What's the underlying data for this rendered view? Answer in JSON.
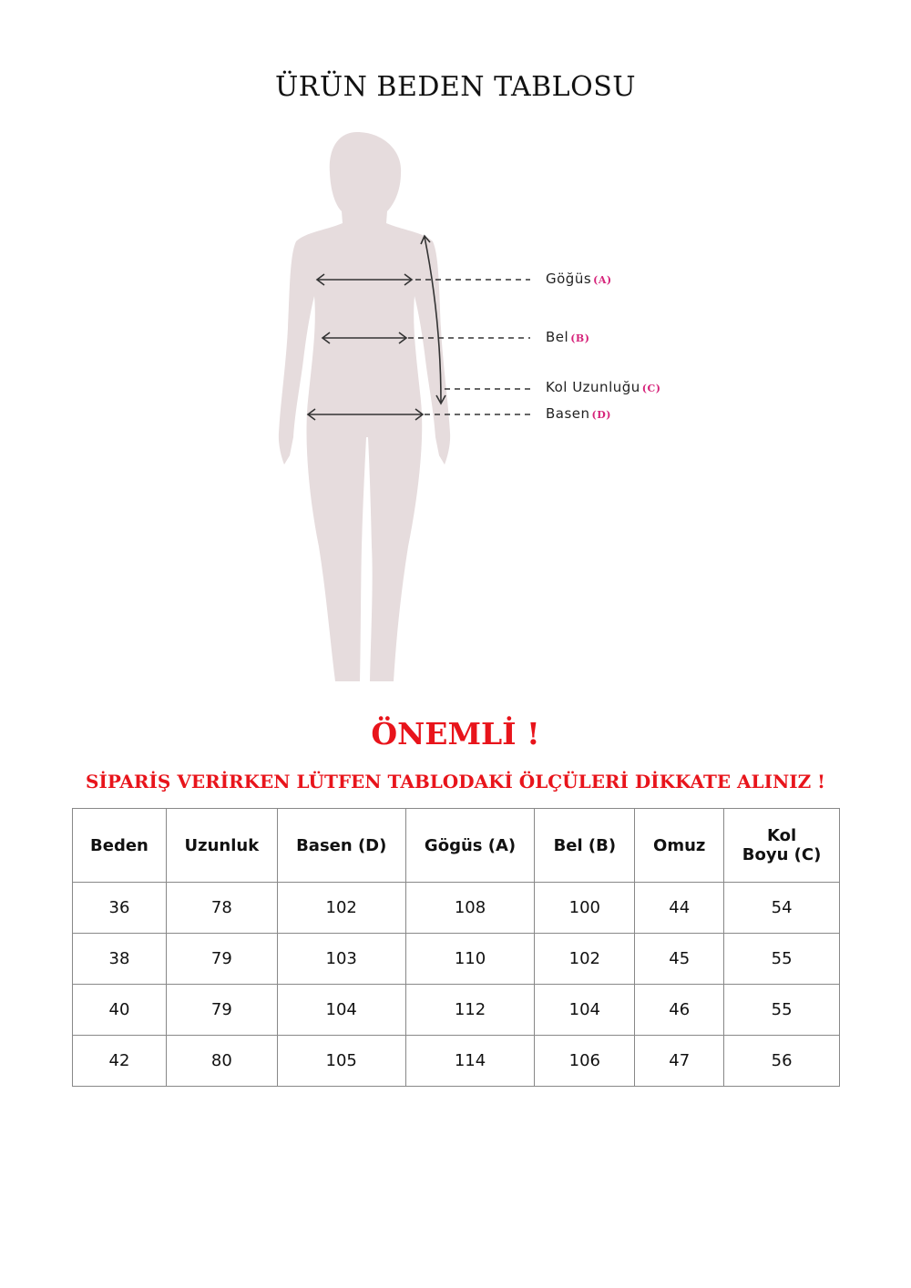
{
  "title": "ÜRÜN BEDEN TABLOSU",
  "figure": {
    "labels": [
      {
        "name": "Göğüs",
        "code": "(A)"
      },
      {
        "name": "Bel",
        "code": "(B)"
      },
      {
        "name": "Kol Uzunluğu",
        "code": "(C)"
      },
      {
        "name": "Basen",
        "code": "(D)"
      }
    ],
    "silhouette_color": "#e6dcdd",
    "code_color": "#d6237a"
  },
  "notice": {
    "heading": "ÖNEMLİ !",
    "message": "SİPARİŞ VERİRKEN LÜTFEN TABLODAKİ ÖLÇÜLERİ DİKKATE ALINIZ !",
    "color": "#e8141b"
  },
  "table": {
    "headers": [
      "Beden",
      "Uzunluk",
      "Basen (D)",
      "Gögüs (A)",
      "Bel (B)",
      "Omuz",
      "Kol\nBoyu (C)"
    ],
    "header_lines": [
      [
        "Beden"
      ],
      [
        "Uzunluk"
      ],
      [
        "Basen (D)"
      ],
      [
        "Gögüs (A)"
      ],
      [
        "Bel (B)"
      ],
      [
        "Omuz"
      ],
      [
        "Kol",
        "Boyu (C)"
      ]
    ],
    "rows": [
      [
        "36",
        "78",
        "102",
        "108",
        "100",
        "44",
        "54"
      ],
      [
        "38",
        "79",
        "103",
        "110",
        "102",
        "45",
        "55"
      ],
      [
        "40",
        "79",
        "104",
        "112",
        "104",
        "46",
        "55"
      ],
      [
        "42",
        "80",
        "105",
        "114",
        "106",
        "47",
        "56"
      ]
    ]
  }
}
